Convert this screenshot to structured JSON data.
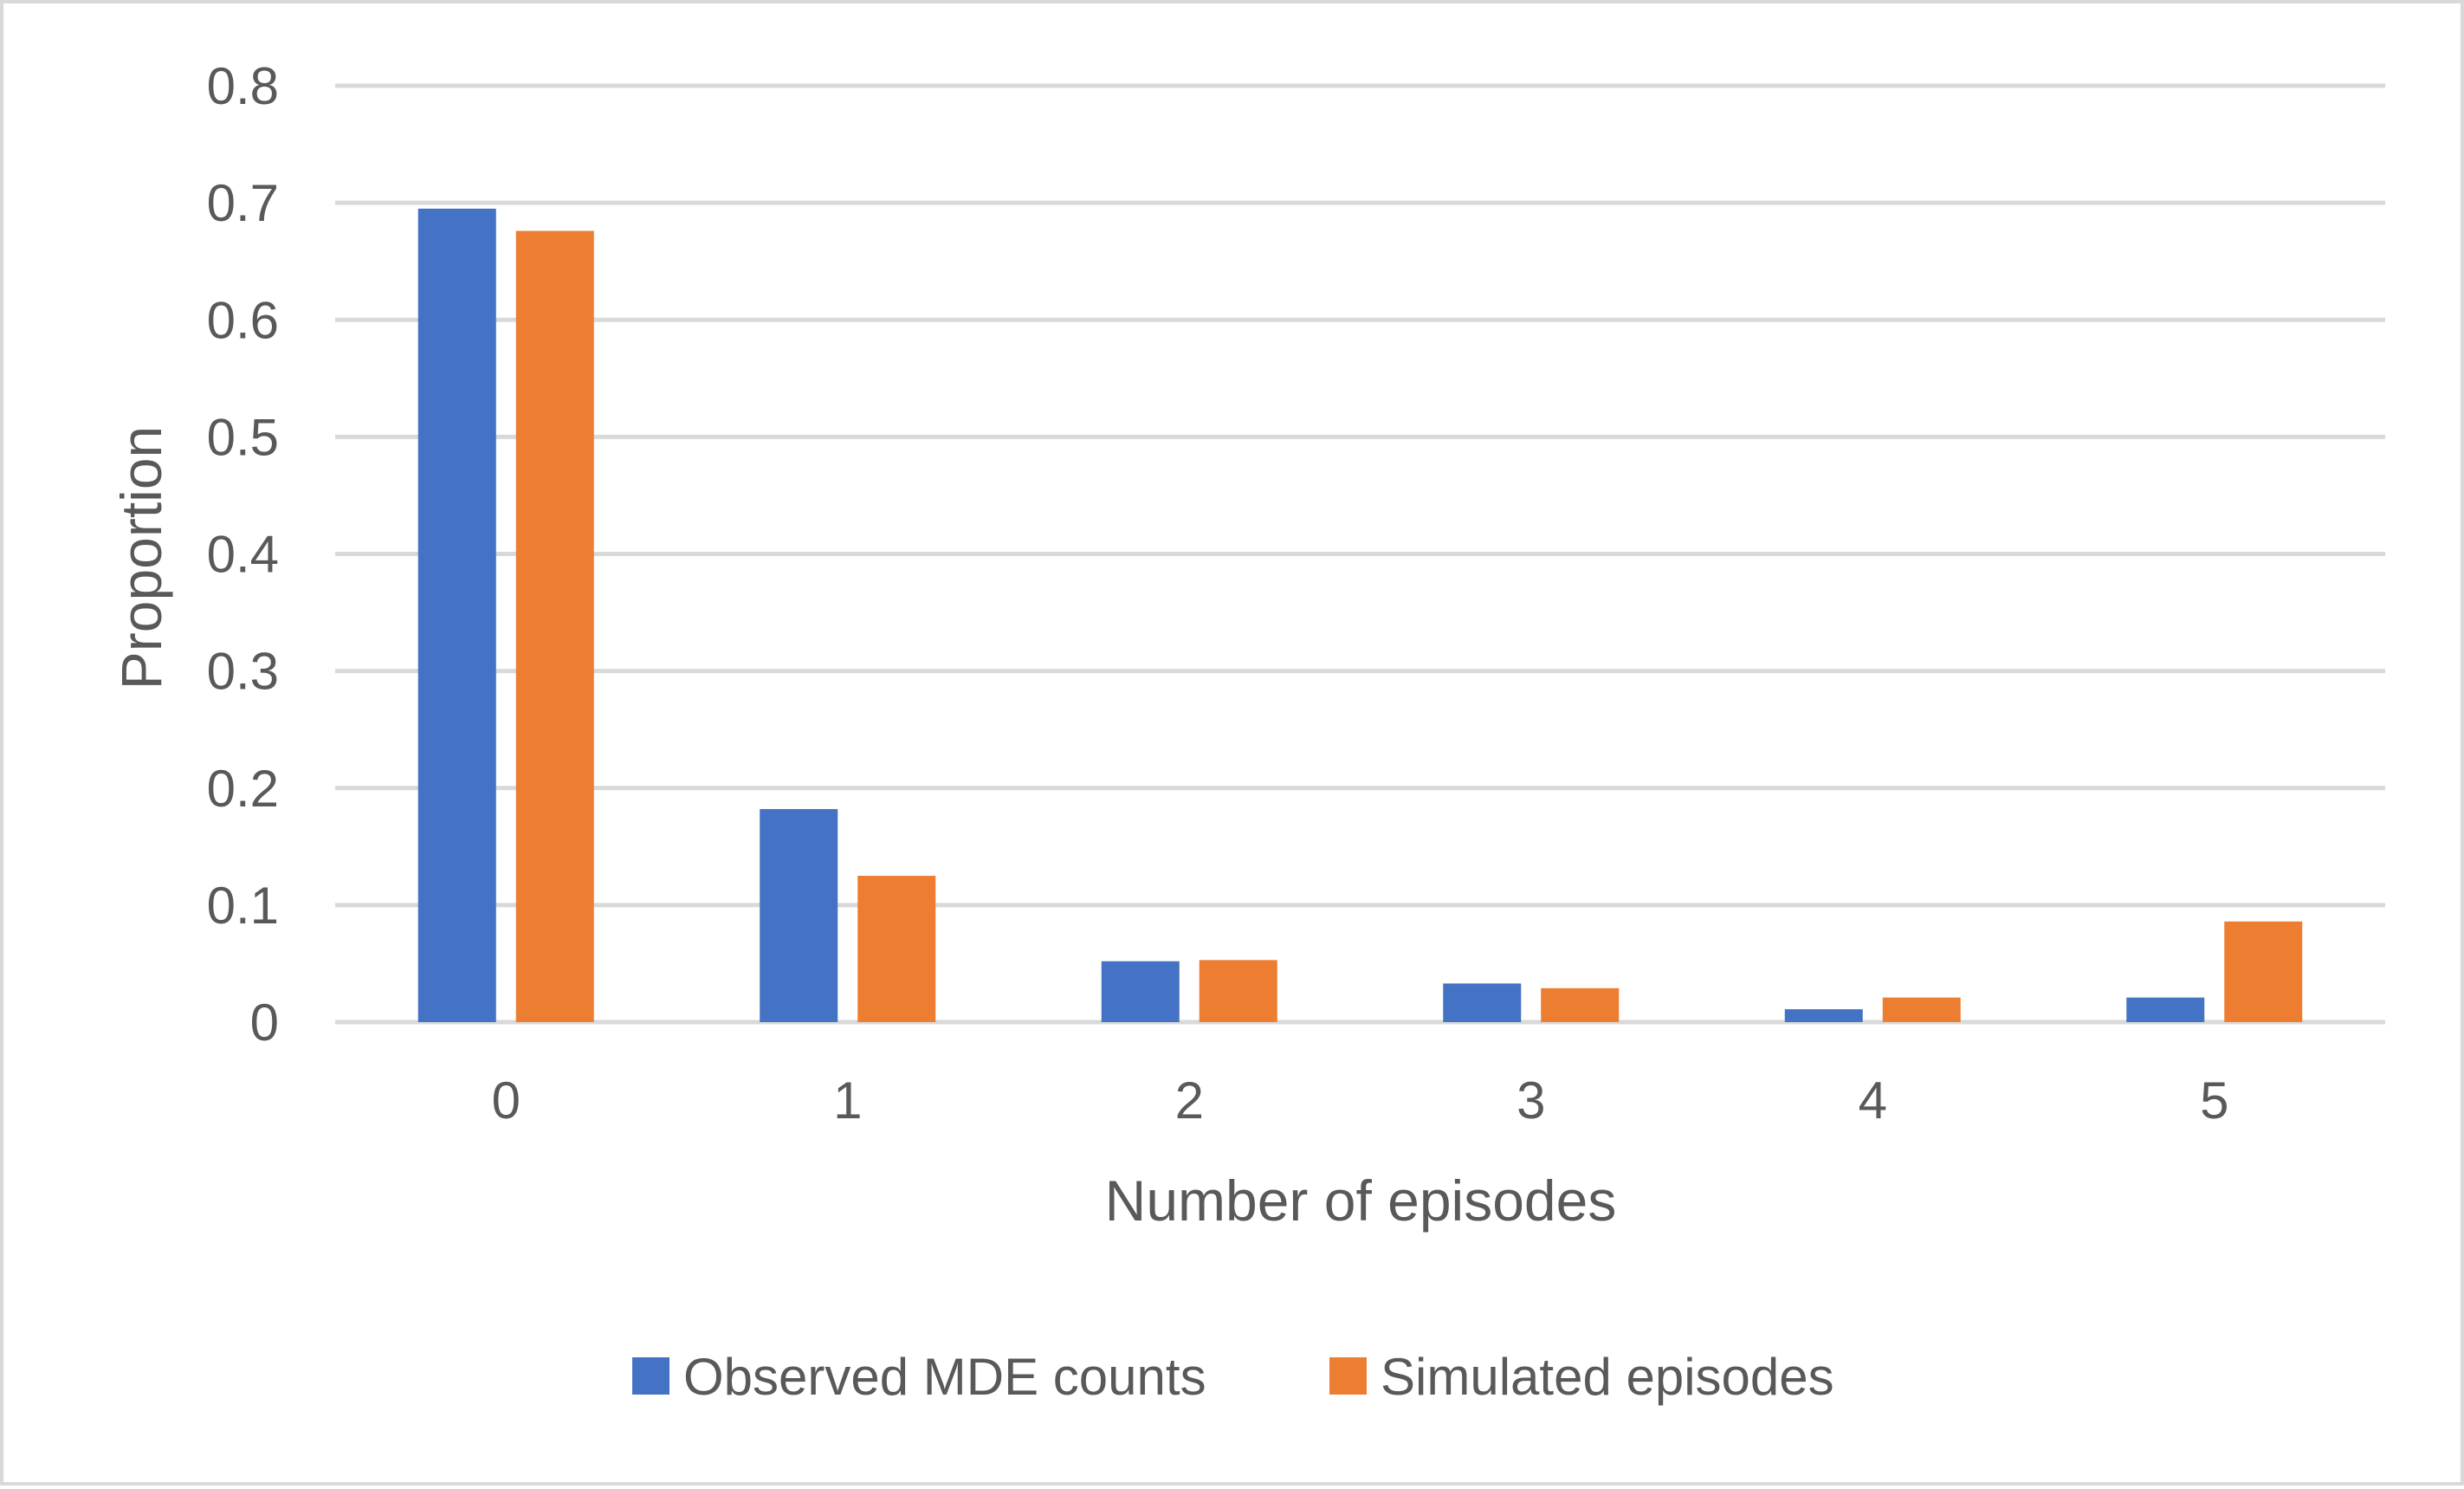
{
  "chart_data": {
    "type": "bar",
    "title": "",
    "xlabel": "Number of episodes",
    "ylabel": "Proportion",
    "categories": [
      "0",
      "1",
      "2",
      "3",
      "4",
      "5"
    ],
    "series": [
      {
        "name": "Observed MDE counts",
        "color": "#4472c4",
        "values": [
          0.695,
          0.182,
          0.052,
          0.033,
          0.011,
          0.021
        ]
      },
      {
        "name": "Simulated episodes",
        "color": "#ed7d31",
        "values": [
          0.676,
          0.125,
          0.053,
          0.029,
          0.021,
          0.086
        ]
      }
    ],
    "ylim": [
      0,
      0.8
    ],
    "yticks": [
      "0",
      "0.1",
      "0.2",
      "0.3",
      "0.4",
      "0.5",
      "0.6",
      "0.7",
      "0.8"
    ],
    "grid": true,
    "legend": "bottom-center"
  },
  "colors": {
    "gridline": "#d9d9d9",
    "text": "#595959"
  }
}
